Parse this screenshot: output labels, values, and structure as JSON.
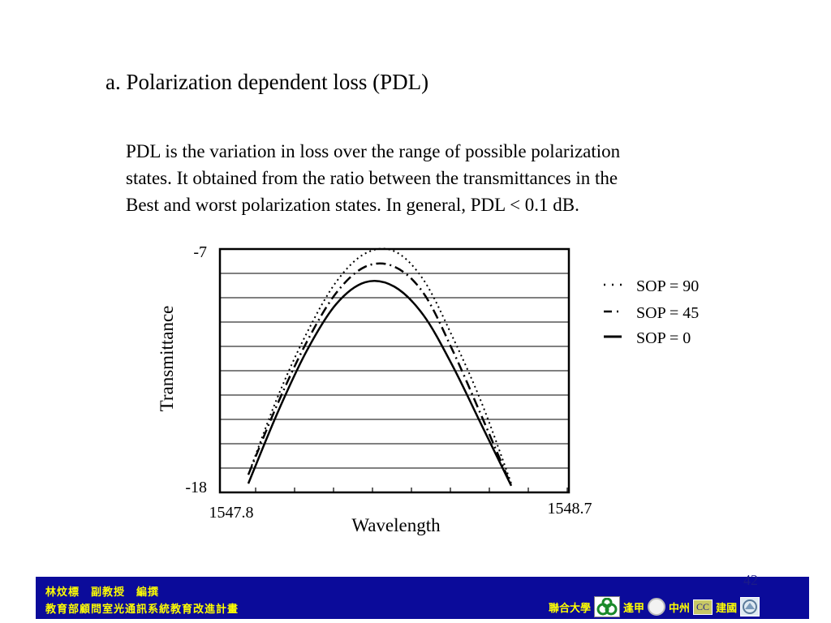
{
  "slide": {
    "heading": "a. Polarization dependent loss (PDL)",
    "body_lines": [
      "PDL is the variation in loss over the range of possible polarization",
      "states. It obtained from the ratio between the transmittances in the",
      "Best and worst polarization states. In general, PDL < 0.1 dB."
    ],
    "page_number": "42"
  },
  "footer": {
    "author": "林炆標　副教授　編撰",
    "program": "教育部顧問室光通訊系統教育改進計畫",
    "partners": [
      "聯合大學",
      "逢甲",
      "中州",
      "建國"
    ],
    "cc_label": "CC",
    "bar_color": "#0b0b9a",
    "text_color": "#ffff00"
  },
  "chart_data": {
    "type": "line",
    "xlabel": "Wavelength",
    "ylabel": "Transmittance",
    "x_tick_labels": [
      "1547.8",
      "1548.7"
    ],
    "y_tick_labels": [
      "-7",
      "-18"
    ],
    "xlim": [
      1547.8,
      1548.7
    ],
    "ylim": [
      -18,
      -7
    ],
    "grid": true,
    "legend_position": "right",
    "series": [
      {
        "name": "SOP = 90",
        "style": "dotted",
        "x": [
          1547.8,
          1547.9,
          1548.0,
          1548.1,
          1548.2,
          1548.3,
          1548.4,
          1548.5,
          1548.6,
          1548.7
        ],
        "y": [
          -17.2,
          -13.7,
          -10.8,
          -8.5,
          -7.2,
          -7.1,
          -8.4,
          -11.0,
          -14.0,
          -17.6
        ]
      },
      {
        "name": "SOP = 45",
        "style": "dash-dot",
        "x": [
          1547.8,
          1547.9,
          1548.0,
          1548.1,
          1548.2,
          1548.3,
          1548.4,
          1548.5,
          1548.6,
          1548.7
        ],
        "y": [
          -17.2,
          -14.0,
          -11.2,
          -9.0,
          -7.8,
          -7.8,
          -9.0,
          -11.6,
          -14.6,
          -17.7
        ]
      },
      {
        "name": "SOP = 0",
        "style": "solid",
        "x": [
          1547.8,
          1547.9,
          1548.0,
          1548.1,
          1548.2,
          1548.3,
          1548.4,
          1548.5,
          1548.6,
          1548.7
        ],
        "y": [
          -17.6,
          -14.4,
          -11.6,
          -9.5,
          -8.5,
          -8.7,
          -10.0,
          -12.3,
          -15.0,
          -17.7
        ]
      }
    ]
  }
}
